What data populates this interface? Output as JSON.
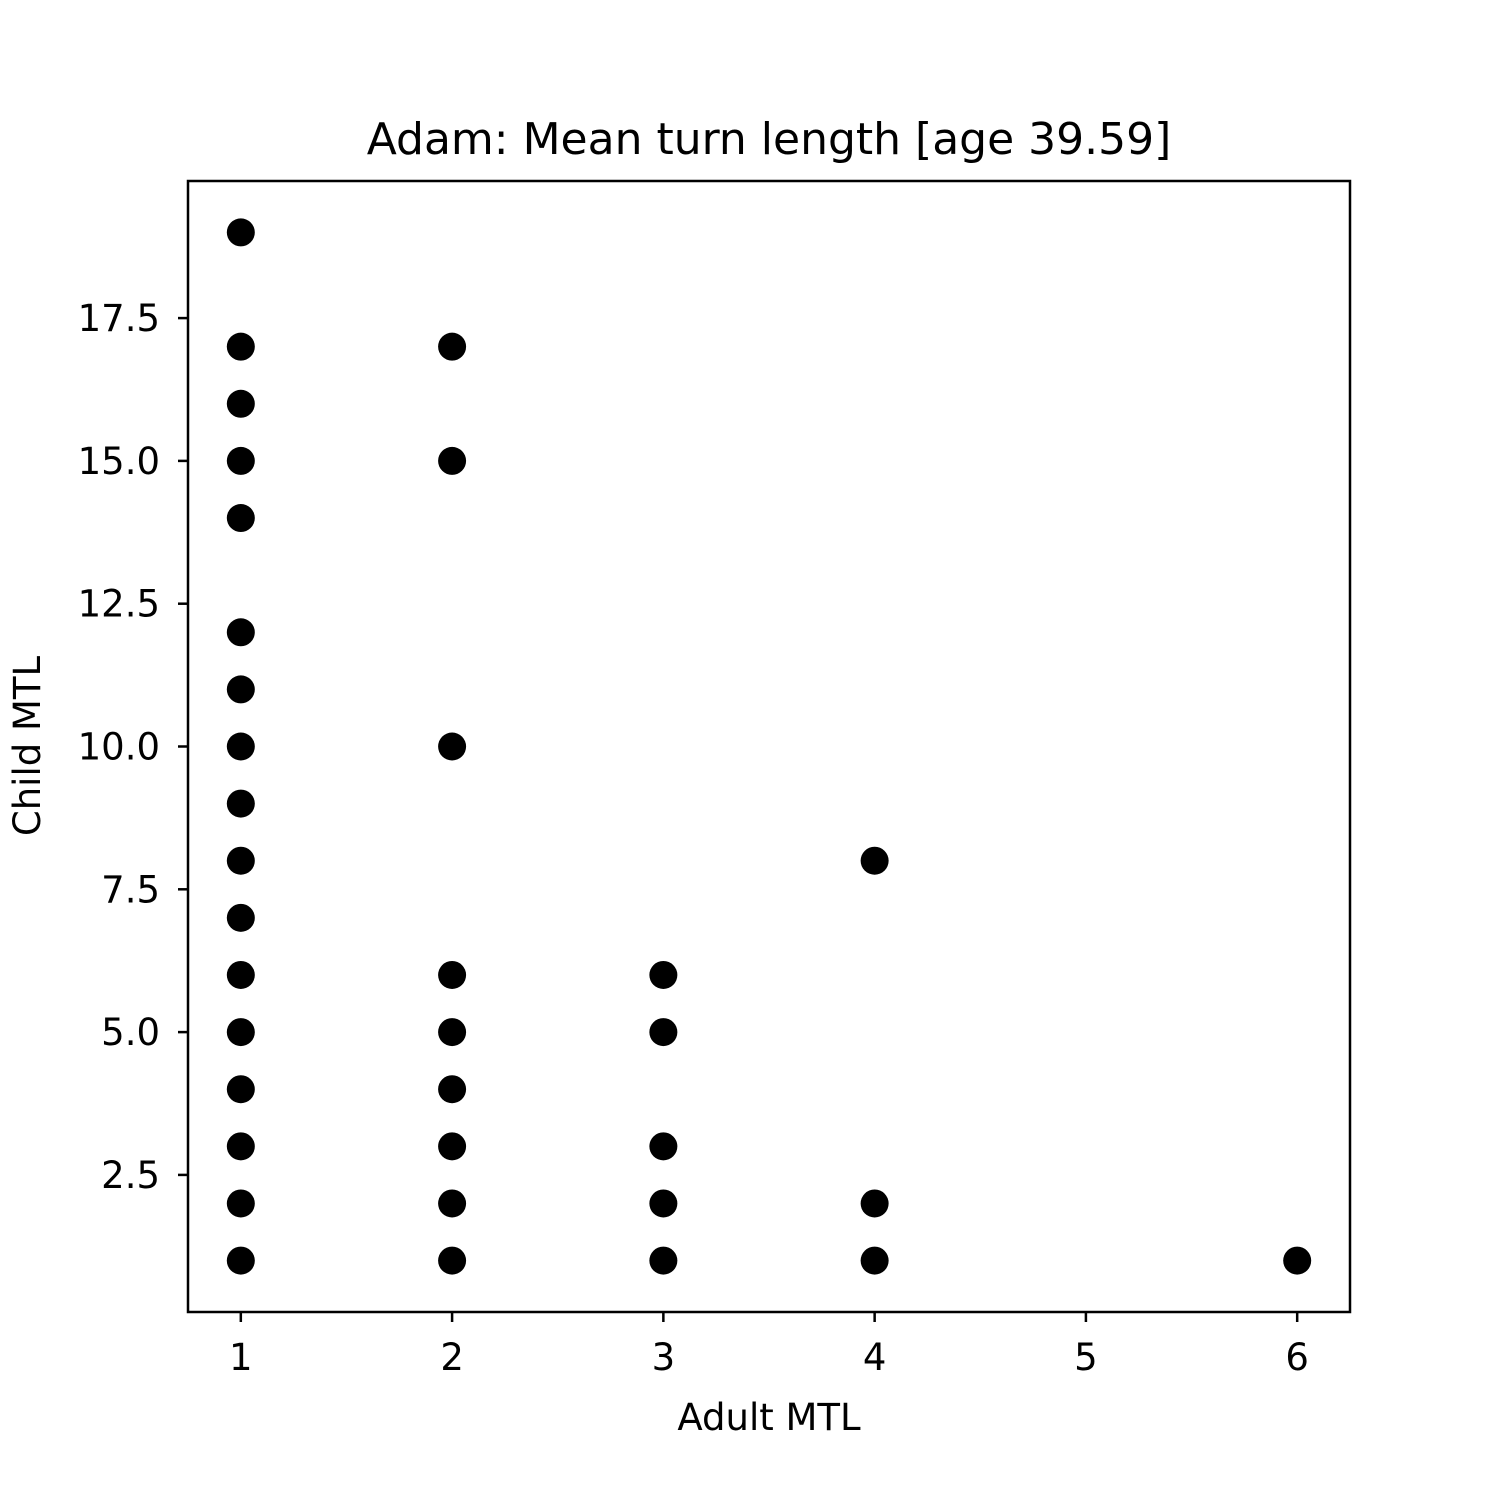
{
  "chart_data": {
    "type": "scatter",
    "title": "Adam: Mean turn length [age 39.59]",
    "xlabel": "Adult MTL",
    "ylabel": "Child MTL",
    "xlim": [
      0.75,
      6.25
    ],
    "ylim": [
      0.1,
      19.9
    ],
    "xticks": [
      1,
      2,
      3,
      4,
      5,
      6
    ],
    "xtick_labels": [
      "1",
      "2",
      "3",
      "4",
      "5",
      "6"
    ],
    "yticks": [
      2.5,
      5.0,
      7.5,
      10.0,
      12.5,
      15.0,
      17.5
    ],
    "ytick_labels": [
      "2.5",
      "5.0",
      "7.5",
      "10.0",
      "12.5",
      "15.0",
      "17.5"
    ],
    "grid": false,
    "marker_color": "#000000",
    "points": [
      {
        "x": 1,
        "y": 1
      },
      {
        "x": 1,
        "y": 2
      },
      {
        "x": 1,
        "y": 3
      },
      {
        "x": 1,
        "y": 4
      },
      {
        "x": 1,
        "y": 5
      },
      {
        "x": 1,
        "y": 6
      },
      {
        "x": 1,
        "y": 7
      },
      {
        "x": 1,
        "y": 8
      },
      {
        "x": 1,
        "y": 9
      },
      {
        "x": 1,
        "y": 10
      },
      {
        "x": 1,
        "y": 11
      },
      {
        "x": 1,
        "y": 12
      },
      {
        "x": 1,
        "y": 14
      },
      {
        "x": 1,
        "y": 15
      },
      {
        "x": 1,
        "y": 16
      },
      {
        "x": 1,
        "y": 17
      },
      {
        "x": 1,
        "y": 19
      },
      {
        "x": 2,
        "y": 1
      },
      {
        "x": 2,
        "y": 2
      },
      {
        "x": 2,
        "y": 3
      },
      {
        "x": 2,
        "y": 4
      },
      {
        "x": 2,
        "y": 5
      },
      {
        "x": 2,
        "y": 6
      },
      {
        "x": 2,
        "y": 10
      },
      {
        "x": 2,
        "y": 15
      },
      {
        "x": 2,
        "y": 17
      },
      {
        "x": 3,
        "y": 1
      },
      {
        "x": 3,
        "y": 2
      },
      {
        "x": 3,
        "y": 3
      },
      {
        "x": 3,
        "y": 5
      },
      {
        "x": 3,
        "y": 6
      },
      {
        "x": 4,
        "y": 1
      },
      {
        "x": 4,
        "y": 2
      },
      {
        "x": 4,
        "y": 8
      },
      {
        "x": 6,
        "y": 1
      }
    ]
  }
}
